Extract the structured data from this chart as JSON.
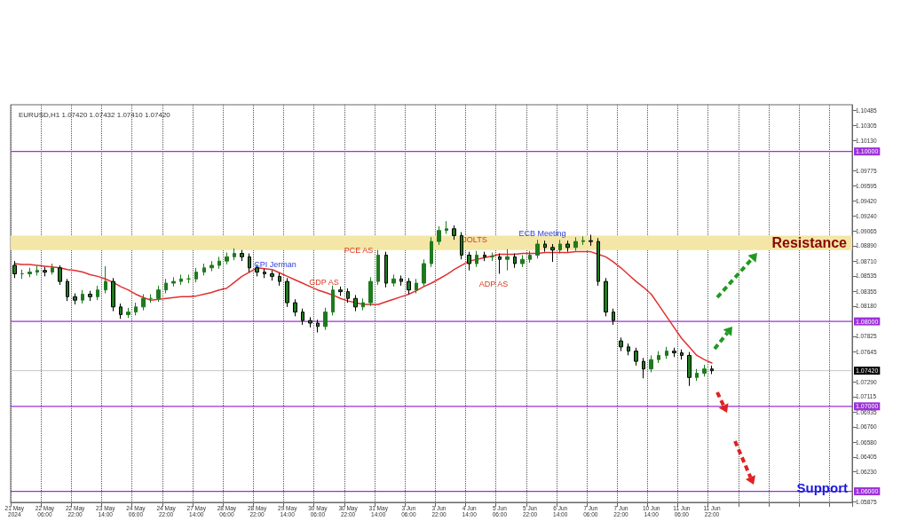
{
  "chart_data": {
    "type": "candlestick",
    "title": "EURUSD,H1 1.07420 1.07432 1.07410 1.07420",
    "categories": [
      "21 May 2024",
      null,
      null,
      null,
      "22 May 06:00",
      null,
      null,
      null,
      "22 May 22:00",
      null,
      null,
      null,
      "23 May 14:00",
      null,
      null,
      null,
      "24 May 06:00",
      null,
      null,
      null,
      "24 May 22:00",
      null,
      null,
      null,
      "27 May 14:00",
      null,
      null,
      null,
      "28 May 06:00",
      null,
      null,
      null,
      "28 May 22:00",
      null,
      null,
      null,
      "29 May 14:00",
      null,
      null,
      null,
      "30 May 06:00",
      null,
      null,
      null,
      "30 May 22:00",
      null,
      null,
      null,
      "31 May 14:00",
      null,
      null,
      null,
      "3 Jun 06:00",
      null,
      null,
      null,
      "3 Jun 22:00",
      null,
      null,
      null,
      "4 Jun 14:00",
      null,
      null,
      null,
      "5 Jun 06:00",
      null,
      null,
      null,
      "5 Jun 22:00",
      null,
      null,
      null,
      "6 Jun 14:00",
      null,
      null,
      null,
      "7 Jun 06:00",
      null,
      null,
      null,
      "7 Jun 22:00",
      null,
      null,
      null,
      "10 Jun 14:00",
      null,
      null,
      null,
      "11 Jun 06:00",
      null,
      null,
      null,
      "11 Jun 22:00",
      null,
      null,
      null,
      null,
      null,
      null,
      null,
      null,
      null,
      null,
      null,
      null,
      null,
      null,
      null,
      null,
      null,
      null
    ],
    "series": [
      {
        "type": "candlestick",
        "color": "#1f7a1f",
        "ohlc": [
          [
            1.0866,
            1.0871,
            1.0851,
            1.0856
          ],
          [
            1.0856,
            1.0861,
            1.085,
            1.0856
          ],
          [
            1.0856,
            1.0863,
            1.0852,
            1.0858
          ],
          [
            1.0858,
            1.0865,
            1.0854,
            1.086
          ],
          [
            1.086,
            1.0864,
            1.0853,
            1.0858
          ],
          [
            1.0858,
            1.0868,
            1.0855,
            1.0863
          ],
          [
            1.0863,
            1.0866,
            1.0843,
            1.0847
          ],
          [
            1.0847,
            1.085,
            1.0824,
            1.0829
          ],
          [
            1.0829,
            1.0833,
            1.082,
            1.0825
          ],
          [
            1.0825,
            1.0837,
            1.0821,
            1.0832
          ],
          [
            1.0832,
            1.0836,
            1.0824,
            1.0829
          ],
          [
            1.0829,
            1.0842,
            1.0825,
            1.0837
          ],
          [
            1.0837,
            1.0865,
            1.0833,
            1.0847
          ],
          [
            1.0847,
            1.0851,
            1.0812,
            1.0817
          ],
          [
            1.0817,
            1.0821,
            1.0803,
            1.0808
          ],
          [
            1.0808,
            1.0816,
            1.0804,
            1.0811
          ],
          [
            1.0811,
            1.0822,
            1.0807,
            1.0817
          ],
          [
            1.0817,
            1.0832,
            1.0813,
            1.0827
          ],
          [
            1.0827,
            1.0832,
            1.0822,
            1.0827
          ],
          [
            1.0827,
            1.0842,
            1.0823,
            1.0837
          ],
          [
            1.0837,
            1.085,
            1.0833,
            1.0845
          ],
          [
            1.0845,
            1.0852,
            1.0841,
            1.0847
          ],
          [
            1.0847,
            1.0855,
            1.0843,
            1.085
          ],
          [
            1.085,
            1.0855,
            1.0845,
            1.085
          ],
          [
            1.085,
            1.0863,
            1.0846,
            1.0858
          ],
          [
            1.0858,
            1.0868,
            1.0854,
            1.0863
          ],
          [
            1.0863,
            1.0871,
            1.0859,
            1.0866
          ],
          [
            1.0866,
            1.0876,
            1.0862,
            1.0871
          ],
          [
            1.0871,
            1.0881,
            1.0867,
            1.0876
          ],
          [
            1.0876,
            1.0886,
            1.0872,
            1.088
          ],
          [
            1.088,
            1.0884,
            1.0871,
            1.0876
          ],
          [
            1.0876,
            1.088,
            1.0858,
            1.0863
          ],
          [
            1.0863,
            1.0867,
            1.0853,
            1.0858
          ],
          [
            1.0858,
            1.0862,
            1.0851,
            1.0856
          ],
          [
            1.0856,
            1.086,
            1.0848,
            1.0853
          ],
          [
            1.0853,
            1.0857,
            1.0842,
            1.0847
          ],
          [
            1.0847,
            1.0851,
            1.0817,
            1.0822
          ],
          [
            1.0822,
            1.0826,
            1.0806,
            1.0811
          ],
          [
            1.0811,
            1.0815,
            1.0796,
            1.0801
          ],
          [
            1.0801,
            1.0805,
            1.0793,
            1.0798
          ],
          [
            1.0798,
            1.0802,
            1.0787,
            1.0794
          ],
          [
            1.0794,
            1.0816,
            1.079,
            1.0811
          ],
          [
            1.0811,
            1.0842,
            1.0807,
            1.0837
          ],
          [
            1.0837,
            1.0841,
            1.083,
            1.0835
          ],
          [
            1.0835,
            1.0839,
            1.0822,
            1.0827
          ],
          [
            1.0827,
            1.0831,
            1.0812,
            1.0817
          ],
          [
            1.0817,
            1.0827,
            1.0813,
            1.0822
          ],
          [
            1.0822,
            1.0852,
            1.0818,
            1.0847
          ],
          [
            1.0847,
            1.0884,
            1.0843,
            1.0878
          ],
          [
            1.0878,
            1.0882,
            1.084,
            1.0845
          ],
          [
            1.0845,
            1.0855,
            1.0841,
            1.085
          ],
          [
            1.085,
            1.0854,
            1.0842,
            1.0847
          ],
          [
            1.0847,
            1.0851,
            1.0832,
            1.0837
          ],
          [
            1.0837,
            1.085,
            1.0833,
            1.0845
          ],
          [
            1.0845,
            1.0873,
            1.0841,
            1.0868
          ],
          [
            1.0868,
            1.0899,
            1.0864,
            1.0894
          ],
          [
            1.0894,
            1.0912,
            1.089,
            1.0907
          ],
          [
            1.0907,
            1.0918,
            1.0903,
            1.0909
          ],
          [
            1.0909,
            1.0913,
            1.0896,
            1.0901
          ],
          [
            1.0901,
            1.0905,
            1.0873,
            1.0878
          ],
          [
            1.0878,
            1.0882,
            1.086,
            1.0868
          ],
          [
            1.0868,
            1.0883,
            1.0864,
            1.0878
          ],
          [
            1.0878,
            1.0882,
            1.0871,
            1.0876
          ],
          [
            1.0876,
            1.0881,
            1.0871,
            1.0876
          ],
          [
            1.0876,
            1.088,
            1.0856,
            1.0873
          ],
          [
            1.0873,
            1.0885,
            1.086,
            1.0876
          ],
          [
            1.0876,
            1.088,
            1.0863,
            1.0868
          ],
          [
            1.0868,
            1.0878,
            1.0864,
            1.0873
          ],
          [
            1.0873,
            1.0883,
            1.0869,
            1.0878
          ],
          [
            1.0878,
            1.0896,
            1.0874,
            1.0891
          ],
          [
            1.0891,
            1.0895,
            1.0882,
            1.0887
          ],
          [
            1.0887,
            1.0891,
            1.087,
            1.0884
          ],
          [
            1.0884,
            1.0896,
            1.088,
            1.0891
          ],
          [
            1.0891,
            1.0895,
            1.0882,
            1.0887
          ],
          [
            1.0887,
            1.0899,
            1.0883,
            1.0894
          ],
          [
            1.0894,
            1.09,
            1.089,
            1.0895
          ],
          [
            1.0895,
            1.0902,
            1.0889,
            1.0894
          ],
          [
            1.0894,
            1.0898,
            1.0842,
            1.0847
          ],
          [
            1.0847,
            1.0851,
            1.0806,
            1.0811
          ],
          [
            1.0811,
            1.0815,
            1.0796,
            1.0801
          ],
          [
            1.0777,
            1.0781,
            1.0765,
            1.077
          ],
          [
            1.077,
            1.0774,
            1.076,
            1.0765
          ],
          [
            1.0765,
            1.0769,
            1.0748,
            1.0753
          ],
          [
            1.0753,
            1.0757,
            1.0733,
            1.0744
          ],
          [
            1.0744,
            1.076,
            1.074,
            1.0755
          ],
          [
            1.0755,
            1.0765,
            1.0751,
            1.076
          ],
          [
            1.076,
            1.077,
            1.0756,
            1.0765
          ],
          [
            1.0765,
            1.0769,
            1.0758,
            1.0763
          ],
          [
            1.0763,
            1.0767,
            1.0755,
            1.076
          ],
          [
            1.076,
            1.0764,
            1.0724,
            1.0734
          ],
          [
            1.0734,
            1.0744,
            1.073,
            1.0739
          ],
          [
            1.0739,
            1.0749,
            1.0735,
            1.0744
          ],
          [
            1.0744,
            1.0748,
            1.0738,
            1.0742
          ],
          null,
          null,
          null,
          null,
          null,
          null,
          null,
          null,
          null,
          null,
          null,
          null,
          null,
          null,
          null,
          null,
          null,
          null
        ]
      },
      {
        "type": "line",
        "color": "#e03030",
        "values": [
          1.0868,
          1.0867,
          1.0867,
          1.0866,
          1.0865,
          1.0864,
          1.0863,
          1.0861,
          1.086,
          1.0858,
          1.0855,
          1.0853,
          1.085,
          1.0846,
          1.0841,
          1.0837,
          1.0832,
          1.0828,
          1.0825,
          1.0826,
          1.0827,
          1.0828,
          1.0829,
          1.0829,
          1.083,
          1.0832,
          1.0834,
          1.0837,
          1.0839,
          1.0846,
          1.0853,
          1.0858,
          1.0863,
          1.0862,
          1.0861,
          1.0857,
          1.0853,
          1.0849,
          1.0845,
          1.0841,
          1.0837,
          1.0834,
          1.0831,
          1.0827,
          1.0824,
          1.0822,
          1.082,
          1.082,
          1.082,
          1.0823,
          1.0826,
          1.0829,
          1.0832,
          1.0836,
          1.0841,
          1.0845,
          1.085,
          1.0855,
          1.0861,
          1.0866,
          1.0871,
          1.0873,
          1.0875,
          1.0877,
          1.0879,
          1.0879,
          1.0879,
          1.088,
          1.088,
          1.088,
          1.0881,
          1.0881,
          1.0881,
          1.0881,
          1.0882,
          1.0882,
          1.0882,
          1.0879,
          1.0876,
          1.087,
          1.0863,
          1.0855,
          1.0847,
          1.084,
          1.0832,
          1.0819,
          1.0806,
          1.0793,
          1.078,
          1.077,
          1.076,
          1.0755,
          1.0751,
          null,
          null,
          null,
          null,
          null,
          null,
          null,
          null,
          null,
          null,
          null,
          null,
          null,
          null,
          null,
          null,
          null,
          null
        ]
      }
    ],
    "ylim": [
      1.0587,
      1.1055
    ],
    "yticks": [
      {
        "value": 1.10485,
        "label": "1.10485"
      },
      {
        "value": 1.10305,
        "label": "1.10305"
      },
      {
        "value": 1.1013,
        "label": "1.10130"
      },
      {
        "value": 1.09775,
        "label": "1.09775"
      },
      {
        "value": 1.09595,
        "label": "1.09595"
      },
      {
        "value": 1.0942,
        "label": "1.09420"
      },
      {
        "value": 1.0924,
        "label": "1.09240"
      },
      {
        "value": 1.09065,
        "label": "1.09065"
      },
      {
        "value": 1.0889,
        "label": "1.08890"
      },
      {
        "value": 1.0871,
        "label": "1.08710"
      },
      {
        "value": 1.08535,
        "label": "1.08535"
      },
      {
        "value": 1.08355,
        "label": "1.08355"
      },
      {
        "value": 1.0818,
        "label": "1.08180"
      },
      {
        "value": 1.07825,
        "label": "1.07825"
      },
      {
        "value": 1.07645,
        "label": "1.07645"
      },
      {
        "value": 1.0729,
        "label": "1.07290"
      },
      {
        "value": 1.07115,
        "label": "1.07115"
      },
      {
        "value": 1.06935,
        "label": "1.06935"
      },
      {
        "value": 1.0676,
        "label": "1.06760"
      },
      {
        "value": 1.0658,
        "label": "1.06580"
      },
      {
        "value": 1.06405,
        "label": "1.06405"
      },
      {
        "value": 1.0623,
        "label": "1.06230"
      },
      {
        "value": 1.05875,
        "label": "1.05875"
      }
    ],
    "ref_lines": [
      {
        "axis": "y",
        "value": 1.1,
        "label": "1.10000",
        "color": "#9b30d9"
      },
      {
        "axis": "y",
        "value": 1.08,
        "label": "1.08000",
        "color": "#9b30d9"
      },
      {
        "axis": "y",
        "value": 1.07,
        "label": "1.07000",
        "color": "#9b30d9"
      },
      {
        "axis": "y",
        "value": 1.06,
        "label": "1.06000",
        "color": "#9b30d9"
      },
      {
        "axis": "y",
        "value": 1.0742,
        "label": "1.07420",
        "color": "#c8c8c8"
      }
    ],
    "bands": [
      {
        "axis": "y",
        "from": 1.0884,
        "to": 1.0901,
        "label": "Resistance",
        "color": "#f3e6a6"
      }
    ],
    "annotations": [
      "CPI Jerman",
      "GDP AS",
      "PCE AS",
      "JOLTS",
      "ADP AS",
      "ECB Meeting",
      "Support"
    ],
    "grid": "x"
  }
}
